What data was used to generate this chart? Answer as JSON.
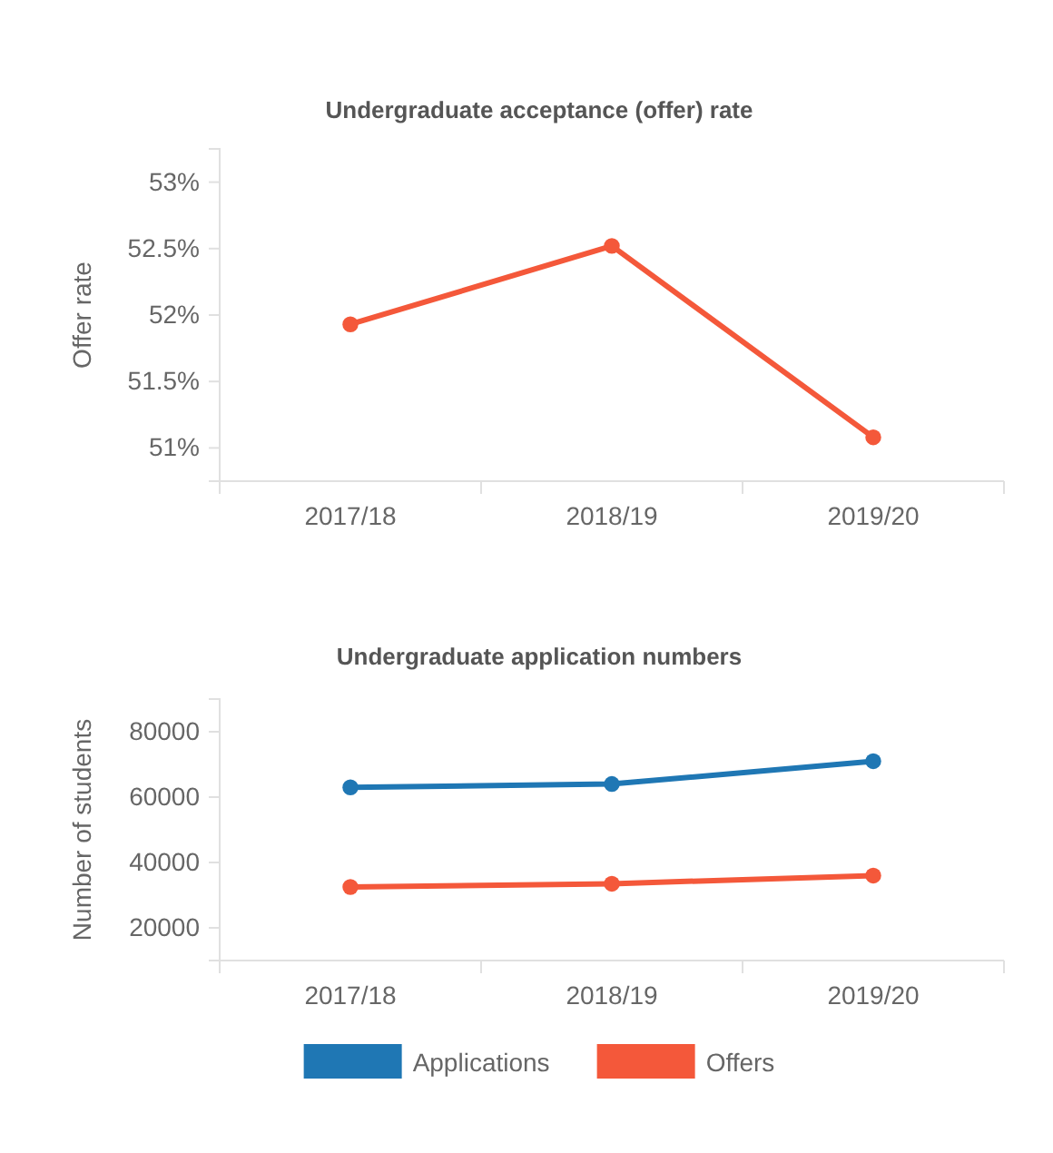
{
  "chart_data": [
    {
      "type": "line",
      "title": "Undergraduate acceptance (offer) rate",
      "ylabel": "Offer rate",
      "categories": [
        "2017/18",
        "2018/19",
        "2019/20"
      ],
      "series": [
        {
          "color": "#f4583a",
          "values": [
            51.93,
            52.52,
            51.08
          ]
        }
      ],
      "ylim": [
        50.75,
        53.25
      ],
      "yticks": [
        {
          "value": 51,
          "label": "51%"
        },
        {
          "value": 51.5,
          "label": "51.5%"
        },
        {
          "value": 52,
          "label": "52%"
        },
        {
          "value": 52.5,
          "label": "52.5%"
        },
        {
          "value": 53,
          "label": "53%"
        }
      ],
      "marker": "circle",
      "line_style": "solid"
    },
    {
      "type": "line",
      "title": "Undergraduate application numbers",
      "ylabel": "Number of students",
      "categories": [
        "2017/18",
        "2018/19",
        "2019/20"
      ],
      "series": [
        {
          "name": "Applications",
          "color": "#1f77b4",
          "values": [
            63000,
            64000,
            71000
          ]
        },
        {
          "name": "Offers",
          "color": "#f4583a",
          "values": [
            32500,
            33500,
            36000
          ]
        }
      ],
      "ylim": [
        10000,
        90000
      ],
      "yticks": [
        20000,
        40000,
        60000,
        80000
      ],
      "marker": "circle",
      "line_style": "solid",
      "legend": "bottom"
    }
  ]
}
